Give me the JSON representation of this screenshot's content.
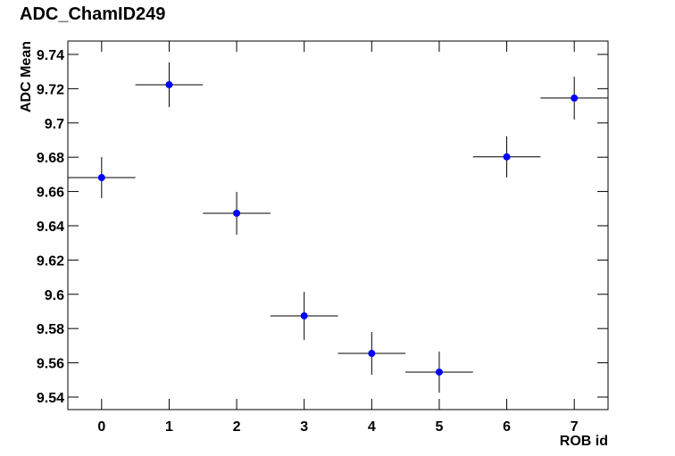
{
  "chart_data": {
    "type": "scatter",
    "title": "ADC_ChamID249",
    "x_label": "ROB id",
    "y_label": "ADC Mean",
    "x": [
      0,
      1,
      2,
      3,
      4,
      5,
      6,
      7
    ],
    "values": [
      9.6681,
      9.7223,
      9.6473,
      9.5874,
      9.5655,
      9.5546,
      9.6802,
      9.7145
    ],
    "xerr": [
      0.5,
      0.5,
      0.5,
      0.5,
      0.5,
      0.5,
      0.5,
      0.5
    ],
    "yerr": [
      0.012,
      0.013,
      0.0125,
      0.014,
      0.0125,
      0.012,
      0.012,
      0.0125
    ],
    "color": "#0000ff",
    "xlim": [
      -0.5,
      7.5
    ],
    "ylim": [
      9.5327,
      9.7478
    ],
    "xticks": [
      0,
      1,
      2,
      3,
      4,
      5,
      6,
      7
    ],
    "yticks": [
      9.54,
      9.56,
      9.58,
      9.6,
      9.62,
      9.64,
      9.66,
      9.68,
      9.7,
      9.72,
      9.74
    ]
  }
}
